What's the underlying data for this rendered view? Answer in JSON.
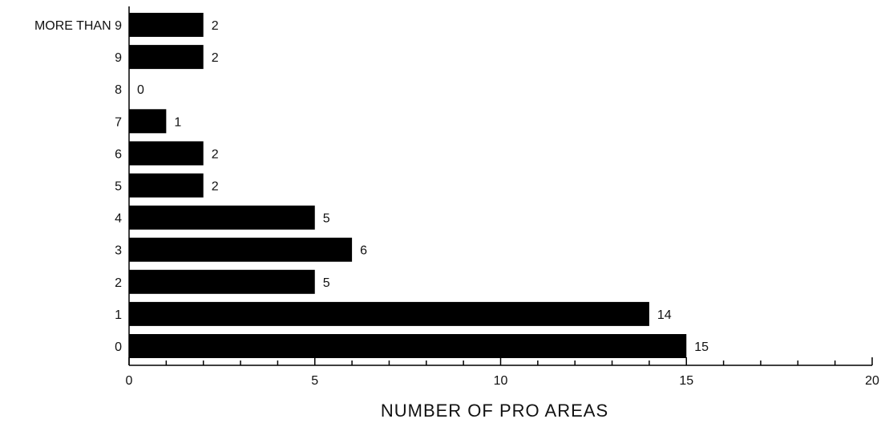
{
  "chart_data": {
    "type": "bar",
    "orientation": "horizontal",
    "categories": [
      "MORE THAN 9",
      "9",
      "8",
      "7",
      "6",
      "5",
      "4",
      "3",
      "2",
      "1",
      "0"
    ],
    "values": [
      2,
      2,
      0,
      1,
      2,
      2,
      5,
      6,
      5,
      14,
      15
    ],
    "xlabel": "NUMBER OF PRO AREAS",
    "ylabel": "",
    "xlim": [
      0,
      20
    ],
    "xticks": [
      0,
      5,
      10,
      15,
      20
    ],
    "grid": false,
    "bar_color": "#000000"
  }
}
